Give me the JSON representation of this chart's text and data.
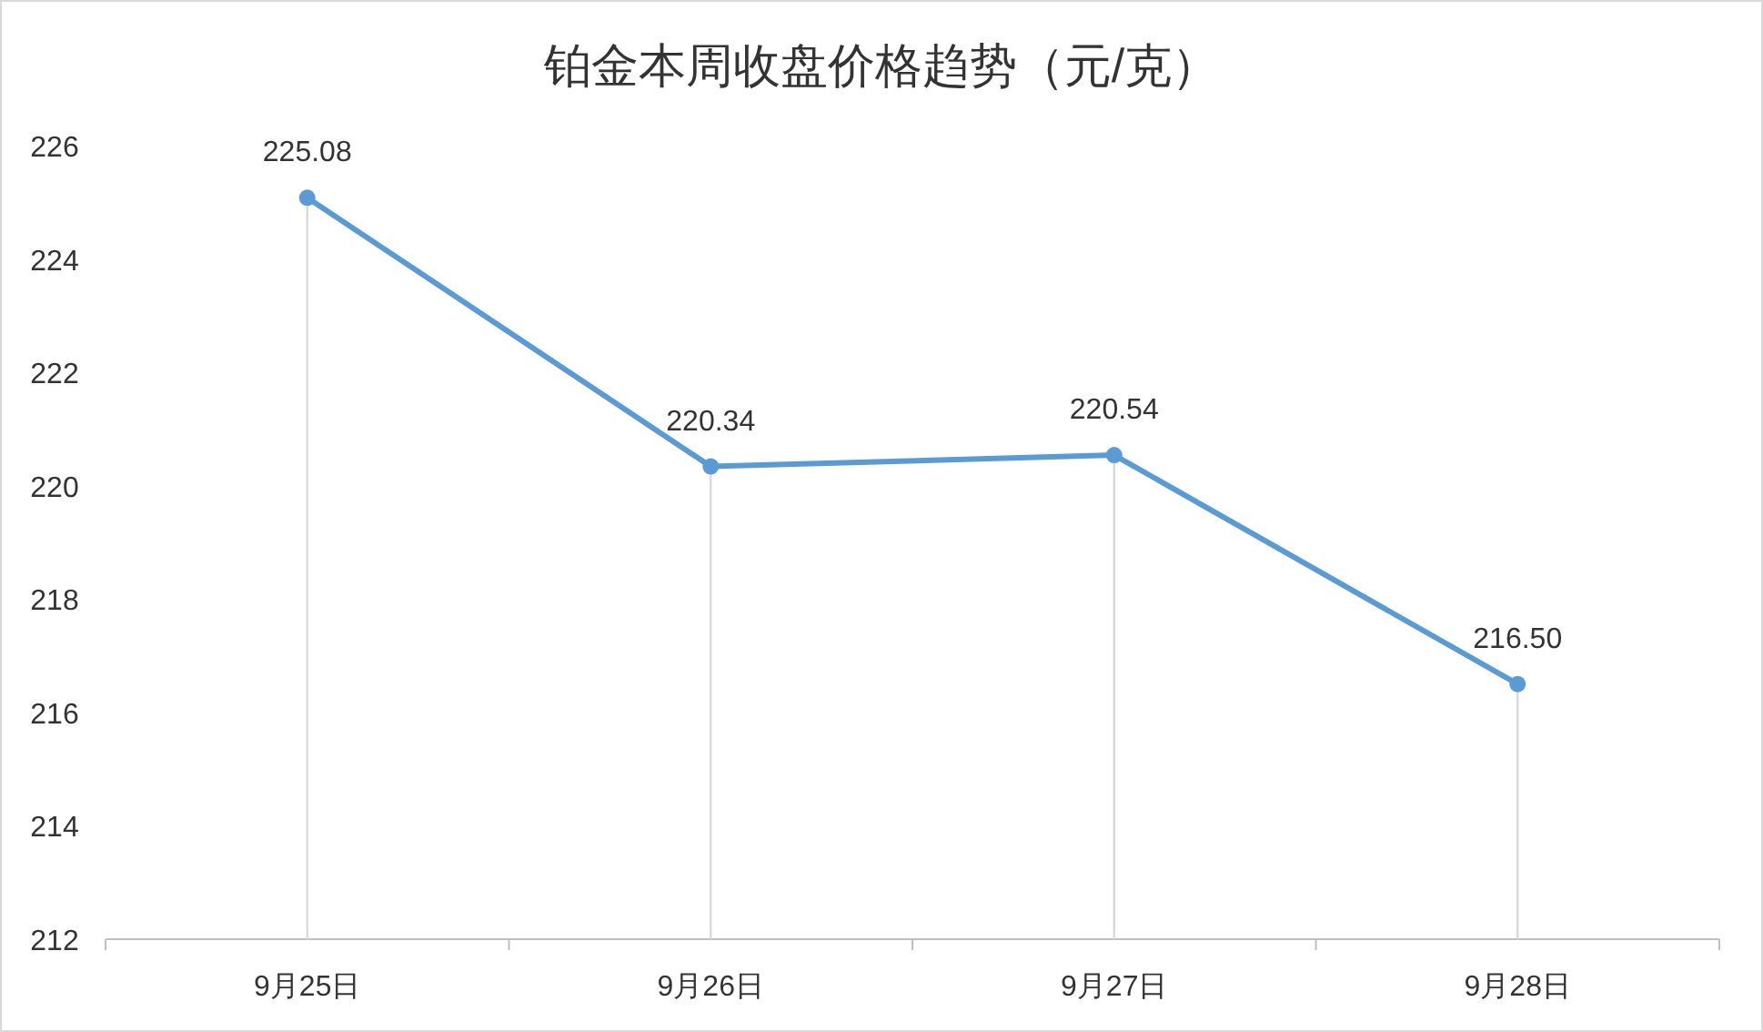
{
  "chart_data": {
    "type": "line",
    "title": "铂金本周收盘价格趋势（元/克）",
    "categories": [
      "9月25日",
      "9月26日",
      "9月27日",
      "9月28日"
    ],
    "series": [
      {
        "color": "#5b9bd5",
        "values": [
          225.08,
          220.34,
          220.54,
          216.5
        ]
      }
    ],
    "value_labels": [
      "225.08",
      "220.34",
      "220.54",
      "216.50"
    ],
    "ylim": [
      212,
      226
    ],
    "yticks": [
      212,
      214,
      216,
      218,
      220,
      222,
      224,
      226
    ],
    "marker": "circle",
    "line_style": "solid"
  }
}
